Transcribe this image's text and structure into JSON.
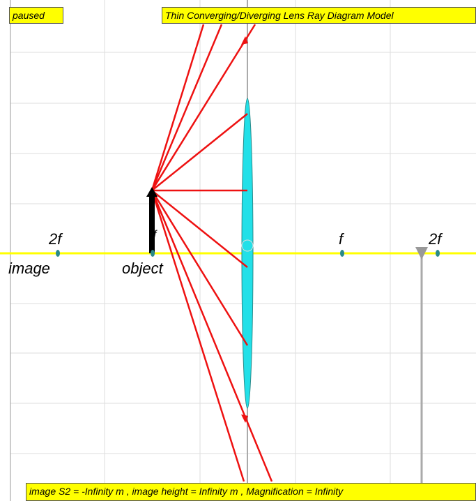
{
  "status": "paused",
  "title": "Thin Converging/Diverging Lens Ray Diagram Model",
  "labels": {
    "left_2f": "2f",
    "left_f": "f",
    "right_f": "f",
    "right_2f": "2f",
    "image": "image",
    "object": "object"
  },
  "footer": "image S2 = -Infinity m , image height = Infinity m , Magnification = Infinity"
}
